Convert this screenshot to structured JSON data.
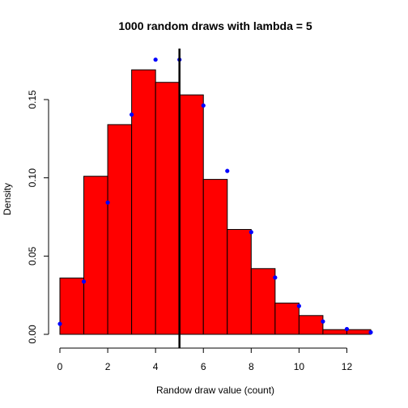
{
  "chart_data": {
    "type": "bar",
    "title": "1000  random draws with lambda = 5",
    "xlabel": "Randow draw value (count)",
    "ylabel": "Density",
    "xlim": [
      0,
      13
    ],
    "ylim": [
      0,
      0.18
    ],
    "x_ticks": [
      0,
      2,
      4,
      6,
      8,
      10,
      12
    ],
    "x_tick_labels": [
      "0",
      "2",
      "4",
      "6",
      "8",
      "10",
      "12"
    ],
    "y_ticks": [
      0,
      0.05,
      0.1,
      0.15
    ],
    "y_tick_labels": [
      "0.00",
      "0.05",
      "0.10",
      "0.15"
    ],
    "histogram": {
      "bin_starts": [
        0,
        1,
        2,
        3,
        4,
        5,
        6,
        7,
        8,
        9,
        10,
        11,
        12
      ],
      "bin_width": 1,
      "values": [
        0.036,
        0.101,
        0.134,
        0.169,
        0.161,
        0.153,
        0.099,
        0.067,
        0.042,
        0.02,
        0.012,
        0.003,
        0.003
      ],
      "fill_color": "#ff0000",
      "border_color": "#000000"
    },
    "points": {
      "x": [
        0,
        1,
        2,
        3,
        4,
        5,
        6,
        7,
        8,
        9,
        10,
        11,
        12,
        13
      ],
      "y": [
        0.0067,
        0.0337,
        0.0842,
        0.1404,
        0.1755,
        0.1755,
        0.1462,
        0.1044,
        0.0653,
        0.0363,
        0.0181,
        0.0082,
        0.0034,
        0.0013
      ],
      "color": "#0000ff"
    },
    "vline": {
      "x": 5,
      "color": "#000000"
    },
    "grid": false,
    "legend": "none"
  }
}
